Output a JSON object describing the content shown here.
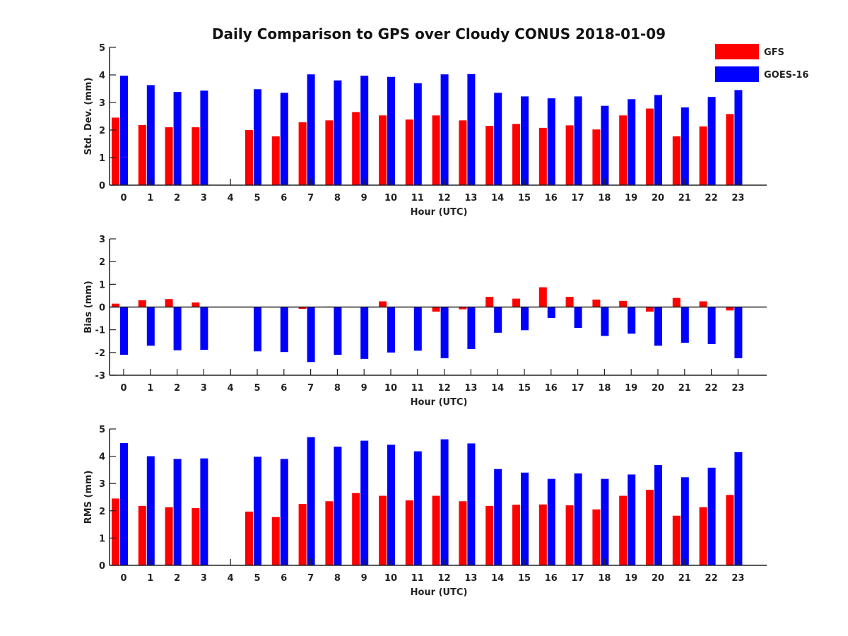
{
  "figure": {
    "title": "Daily Comparison to GPS over Cloudy CONUS 2018-01-09",
    "colors": {
      "GFS": "#ff0000",
      "GOES-16": "#0000ff"
    },
    "legend": {
      "placement": "top-right",
      "items": [
        "GFS",
        "GOES-16"
      ]
    }
  },
  "chart_data": [
    {
      "type": "bar",
      "title": "Daily Comparison to GPS over Cloudy CONUS 2018-01-09",
      "xlabel": "Hour (UTC)",
      "ylabel": "Std. Dev. (mm)",
      "ylim": [
        0,
        5
      ],
      "yticks": [
        0,
        1,
        2,
        3,
        4,
        5
      ],
      "grid": false,
      "categories": [
        "0",
        "1",
        "2",
        "3",
        "4",
        "5",
        "6",
        "7",
        "8",
        "9",
        "10",
        "11",
        "12",
        "13",
        "14",
        "15",
        "16",
        "17",
        "18",
        "19",
        "20",
        "21",
        "22",
        "23"
      ],
      "series": [
        {
          "name": "GFS",
          "values": [
            2.45,
            2.18,
            2.1,
            2.1,
            null,
            2.0,
            1.77,
            2.28,
            2.35,
            2.65,
            2.53,
            2.38,
            2.53,
            2.35,
            2.15,
            2.22,
            2.08,
            2.17,
            2.02,
            2.53,
            2.78,
            1.77,
            2.13,
            2.58
          ]
        },
        {
          "name": "GOES-16",
          "values": [
            3.97,
            3.63,
            3.38,
            3.43,
            null,
            3.48,
            3.35,
            4.02,
            3.8,
            3.97,
            3.93,
            3.7,
            4.02,
            4.03,
            3.35,
            3.22,
            3.15,
            3.22,
            2.88,
            3.12,
            3.27,
            2.82,
            3.2,
            3.45
          ]
        }
      ]
    },
    {
      "type": "bar",
      "xlabel": "Hour (UTC)",
      "ylabel": "Bias (mm)",
      "ylim": [
        -3,
        3
      ],
      "yticks": [
        -3,
        -2,
        -1,
        0,
        1,
        2,
        3
      ],
      "grid": false,
      "categories": [
        "0",
        "1",
        "2",
        "3",
        "4",
        "5",
        "6",
        "7",
        "8",
        "9",
        "10",
        "11",
        "12",
        "13",
        "14",
        "15",
        "16",
        "17",
        "18",
        "19",
        "20",
        "21",
        "22",
        "23"
      ],
      "series": [
        {
          "name": "GFS",
          "values": [
            0.15,
            0.3,
            0.35,
            0.2,
            null,
            0.0,
            0.0,
            -0.08,
            0.02,
            0.0,
            0.25,
            0.0,
            -0.2,
            -0.1,
            0.45,
            0.37,
            0.87,
            0.45,
            0.33,
            0.27,
            -0.2,
            0.4,
            0.25,
            -0.15
          ]
        },
        {
          "name": "GOES-16",
          "values": [
            -2.1,
            -1.7,
            -1.9,
            -1.88,
            null,
            -1.95,
            -1.98,
            -2.42,
            -2.1,
            -2.28,
            -2.0,
            -1.92,
            -2.25,
            -1.85,
            -1.13,
            -1.02,
            -0.48,
            -0.92,
            -1.27,
            -1.17,
            -1.7,
            -1.57,
            -1.63,
            -2.25
          ]
        }
      ]
    },
    {
      "type": "bar",
      "xlabel": "Hour (UTC)",
      "ylabel": "RMS (mm)",
      "ylim": [
        0,
        5
      ],
      "yticks": [
        0,
        1,
        2,
        3,
        4,
        5
      ],
      "grid": false,
      "categories": [
        "0",
        "1",
        "2",
        "3",
        "4",
        "5",
        "6",
        "7",
        "8",
        "9",
        "10",
        "11",
        "12",
        "13",
        "14",
        "15",
        "16",
        "17",
        "18",
        "19",
        "20",
        "21",
        "22",
        "23"
      ],
      "series": [
        {
          "name": "GFS",
          "values": [
            2.45,
            2.18,
            2.13,
            2.1,
            null,
            1.97,
            1.77,
            2.25,
            2.35,
            2.65,
            2.55,
            2.38,
            2.55,
            2.35,
            2.18,
            2.22,
            2.23,
            2.2,
            2.05,
            2.55,
            2.77,
            1.82,
            2.13,
            2.58
          ]
        },
        {
          "name": "GOES-16",
          "values": [
            4.48,
            4.0,
            3.9,
            3.92,
            null,
            3.98,
            3.9,
            4.7,
            4.35,
            4.57,
            4.42,
            4.18,
            4.62,
            4.47,
            3.53,
            3.4,
            3.17,
            3.37,
            3.17,
            3.33,
            3.68,
            3.23,
            3.58,
            4.15
          ]
        }
      ]
    }
  ]
}
